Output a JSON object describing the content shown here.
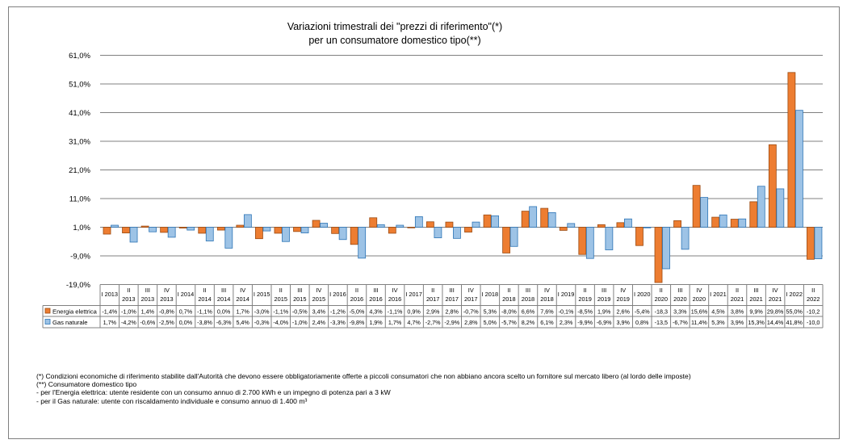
{
  "chart_data": {
    "type": "bar",
    "title": "Variazioni trimestrali dei \"prezzi di riferimento\"(*)",
    "subtitle": "per un consumatore domestico tipo(**)",
    "ylim": [
      -19.0,
      61.0
    ],
    "yticks": [
      "61,0%",
      "51,0%",
      "41,0%",
      "31,0%",
      "21,0%",
      "11,0%",
      "1,0%",
      "-9,0%",
      "-19,0%"
    ],
    "ytick_values": [
      61,
      51,
      41,
      31,
      21,
      11,
      1,
      -9,
      -19
    ],
    "grid": true,
    "categories": [
      [
        "I 2013"
      ],
      [
        "II",
        "2013"
      ],
      [
        "III",
        "2013"
      ],
      [
        "IV",
        "2013"
      ],
      [
        "I 2014"
      ],
      [
        "II",
        "2014"
      ],
      [
        "III",
        "2014"
      ],
      [
        "IV",
        "2014"
      ],
      [
        "I 2015"
      ],
      [
        "II",
        "2015"
      ],
      [
        "III",
        "2015"
      ],
      [
        "IV",
        "2015"
      ],
      [
        "I 2016"
      ],
      [
        "II",
        "2016"
      ],
      [
        "III",
        "2016"
      ],
      [
        "IV",
        "2016"
      ],
      [
        "I 2017"
      ],
      [
        "II",
        "2017"
      ],
      [
        "III",
        "2017"
      ],
      [
        "IV",
        "2017"
      ],
      [
        "I 2018"
      ],
      [
        "II",
        "2018"
      ],
      [
        "III",
        "2018"
      ],
      [
        "IV",
        "2018"
      ],
      [
        "I 2019"
      ],
      [
        "II",
        "2019"
      ],
      [
        "III",
        "2019"
      ],
      [
        "IV",
        "2019"
      ],
      [
        "I 2020"
      ],
      [
        "II",
        "2020"
      ],
      [
        "III",
        "2020"
      ],
      [
        "IV",
        "2020"
      ],
      [
        "I 2021"
      ],
      [
        "II",
        "2021"
      ],
      [
        "III",
        "2021"
      ],
      [
        "IV",
        "2021"
      ],
      [
        "I 2022"
      ],
      [
        "II",
        "2022"
      ]
    ],
    "series": [
      {
        "name": "Energia elettrica",
        "color": "#ed7d31",
        "border": "#9c4a10",
        "values": [
          -1.4,
          -1.0,
          1.4,
          -0.8,
          0.7,
          -1.1,
          0.0,
          1.7,
          -3.0,
          -1.1,
          -0.5,
          3.4,
          -1.2,
          -5.0,
          4.3,
          -1.1,
          0.9,
          2.9,
          2.8,
          -0.7,
          5.3,
          -8.0,
          6.6,
          7.6,
          -0.1,
          -8.5,
          1.9,
          2.6,
          -5.4,
          -18.3,
          3.3,
          15.6,
          4.5,
          3.8,
          9.9,
          29.8,
          55.0,
          -10.2
        ],
        "labels": [
          "-1,4%",
          "-1,0%",
          "1,4%",
          "-0,8%",
          "0,7%",
          "-1,1%",
          "0,0%",
          "1,7%",
          "-3,0%",
          "-1,1%",
          "-0,5%",
          "3,4%",
          "-1,2%",
          "-5,0%",
          "4,3%",
          "-1,1%",
          "0,9%",
          "2,9%",
          "2,8%",
          "-0,7%",
          "5,3%",
          "-8,0%",
          "6,6%",
          "7,6%",
          "-0,1%",
          "-8,5%",
          "1,9%",
          "2,6%",
          "-5,4%",
          "-18,3",
          "3,3%",
          "15,6%",
          "4,5%",
          "3,8%",
          "9,9%",
          "29,8%",
          "55,0%",
          "-10,2"
        ]
      },
      {
        "name": "Gas naturale",
        "color": "#9dc3e6",
        "border": "#2e75b6",
        "values": [
          1.7,
          -4.2,
          -0.6,
          -2.5,
          0.0,
          -3.8,
          -6.3,
          5.4,
          -0.3,
          -4.0,
          -1.0,
          2.4,
          -3.3,
          -9.8,
          1.9,
          1.7,
          4.7,
          -2.7,
          -2.9,
          2.8,
          5.0,
          -5.7,
          8.2,
          6.1,
          2.3,
          -9.9,
          -6.9,
          3.9,
          0.8,
          -13.5,
          -6.7,
          11.4,
          5.3,
          3.9,
          15.3,
          14.4,
          41.8,
          -10.0
        ],
        "labels": [
          "1,7%",
          "-4,2%",
          "-0,6%",
          "-2,5%",
          "0,0%",
          "-3,8%",
          "-6,3%",
          "5,4%",
          "-0,3%",
          "-4,0%",
          "-1,0%",
          "2,4%",
          "-3,3%",
          "-9,8%",
          "1,9%",
          "1,7%",
          "4,7%",
          "-2,7%",
          "-2,9%",
          "2,8%",
          "5,0%",
          "-5,7%",
          "8,2%",
          "6,1%",
          "2,3%",
          "-9,9%",
          "-6,9%",
          "3,9%",
          "0,8%",
          "-13,5",
          "-6,7%",
          "11,4%",
          "5,3%",
          "3,9%",
          "15,3%",
          "14,4%",
          "41,8%",
          "-10,0"
        ]
      }
    ]
  },
  "notes": {
    "line1": "(*) Condizioni economiche di riferimento stabilite dall'Autorità che devono essere obbligatoriamente offerte a piccoli consumatori che non abbiano ancora scelto un fornitore sul mercato libero (al lordo delle imposte)",
    "line2": "(**) Consumatore domestico tipo",
    "line3": "- per l'Energia elettrica: utente residente con un consumo annuo di 2.700 kWh e un impegno di potenza pari a 3 kW",
    "line4": "- per il Gas naturale: utente con riscaldamento individuale e consumo annuo di 1.400 m³"
  }
}
